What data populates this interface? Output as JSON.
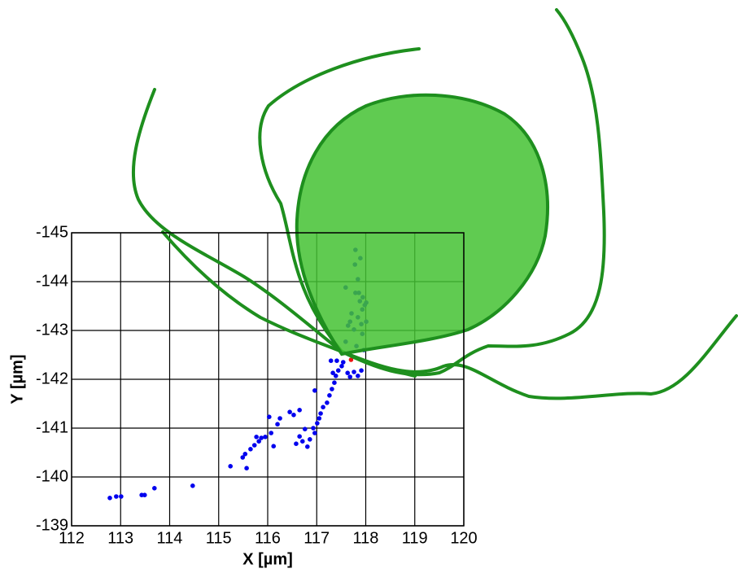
{
  "chart_data": {
    "type": "scatter",
    "xlabel": "X [µm]",
    "ylabel": "Y [µm]",
    "xlim": [
      112,
      120
    ],
    "ylim": [
      -145,
      -139
    ],
    "y_inverted": true,
    "grid": true,
    "xticks": [
      112,
      113,
      114,
      115,
      116,
      117,
      118,
      119,
      120
    ],
    "yticks": [
      -145,
      -144,
      -143,
      -142,
      -141,
      -140,
      -139
    ],
    "series": [
      {
        "color": "#0000ee",
        "x": [
          112.78,
          112.91,
          113.01,
          113.43,
          113.49,
          113.69,
          114.47,
          115.24,
          115.49,
          115.57,
          115.54,
          115.65,
          115.73,
          115.82,
          115.77,
          115.87,
          115.95,
          116.07,
          116.12,
          116.2,
          116.25,
          116.03,
          116.45,
          116.53,
          116.65,
          116.58,
          116.65,
          116.71,
          116.76,
          116.81,
          116.86,
          116.93,
          116.96,
          116.96,
          117.01,
          117.05,
          117.08,
          117.13,
          117.21,
          117.26,
          117.31,
          117.36,
          117.33,
          117.39,
          117.44,
          117.51,
          117.54,
          117.29,
          117.41,
          117.63,
          117.68,
          117.76,
          117.84,
          117.91,
          117.79,
          117.89,
          117.78,
          117.84,
          117.59,
          117.79,
          117.88,
          117.93,
          117.98,
          117.71,
          117.84,
          118.01,
          117.64,
          117.76,
          117.93,
          117.59,
          117.81,
          117.96,
          117.86,
          117.94,
          118.01,
          117.68,
          117.91
        ],
        "values": [
          -139.57,
          -139.6,
          -139.6,
          -139.63,
          -139.63,
          -139.77,
          -139.82,
          -140.22,
          -140.4,
          -140.18,
          -140.47,
          -140.57,
          -140.65,
          -140.73,
          -140.82,
          -140.8,
          -140.82,
          -140.9,
          -140.63,
          -141.08,
          -141.2,
          -141.23,
          -141.33,
          -141.27,
          -141.37,
          -140.68,
          -140.83,
          -140.73,
          -140.98,
          -140.62,
          -140.77,
          -141.0,
          -141.77,
          -140.9,
          -141.1,
          -141.2,
          -141.3,
          -141.43,
          -141.52,
          -141.67,
          -141.8,
          -141.93,
          -142.13,
          -142.07,
          -142.18,
          -142.27,
          -142.35,
          -142.38,
          -142.38,
          -142.13,
          -142.05,
          -142.15,
          -142.07,
          -142.18,
          -144.65,
          -144.48,
          -144.35,
          -144.05,
          -143.88,
          -143.77,
          -143.6,
          -143.43,
          -143.52,
          -143.35,
          -143.27,
          -143.18,
          -143.1,
          -143.02,
          -142.93,
          -142.77,
          -142.68,
          -142.6,
          -143.77,
          -143.68,
          -143.57,
          -143.18,
          -143.13
        ]
      },
      {
        "color": "#ee1111",
        "x": [
          117.7
        ],
        "values": [
          -142.4
        ]
      }
    ]
  }
}
